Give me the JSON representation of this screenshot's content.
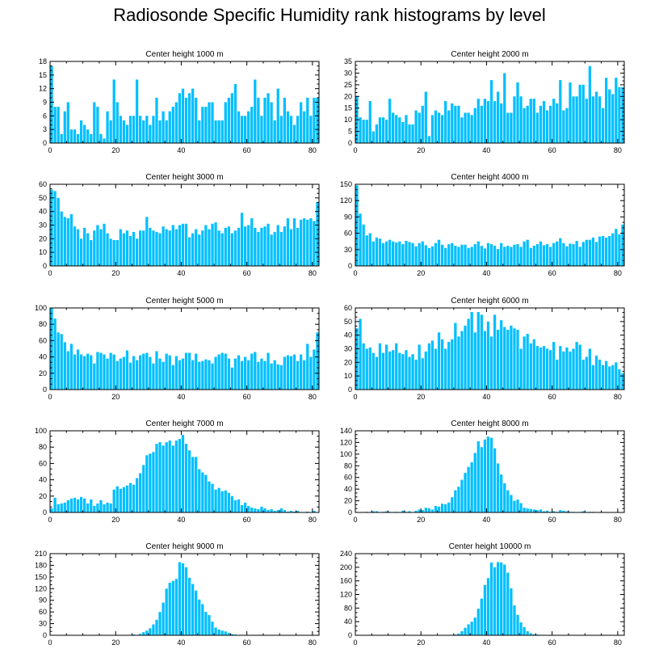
{
  "title": "Radiosonde Specific Humidity rank histograms by level",
  "colors": {
    "bar": "#00BFFF",
    "axis": "#000000"
  },
  "chart_data": [
    {
      "type": "bar",
      "title": "Center height 1000 m",
      "xlim": [
        0,
        82
      ],
      "ylim": [
        0,
        18
      ],
      "xticks": [
        0,
        20,
        40,
        60,
        80
      ],
      "yticks": [
        0,
        3,
        6,
        9,
        12,
        15,
        18
      ],
      "values": [
        17,
        8,
        8,
        2,
        7,
        9,
        3,
        3,
        2,
        5,
        4,
        3,
        2,
        9,
        8,
        2,
        1,
        7,
        5,
        14,
        9,
        6,
        5,
        4,
        6,
        6,
        14,
        6,
        5,
        6,
        4,
        6,
        10,
        5,
        7,
        5,
        7,
        8,
        9,
        11,
        12,
        10,
        11,
        12,
        10,
        5,
        8,
        8,
        9,
        9,
        5,
        5,
        5,
        9,
        10,
        11,
        13,
        7,
        6,
        6,
        7,
        8,
        14,
        10,
        6,
        10,
        11,
        9,
        5,
        12,
        6,
        10,
        7,
        6,
        4,
        6,
        9,
        7,
        10,
        6,
        10,
        10
      ]
    },
    {
      "type": "bar",
      "title": "Center height 2000 m",
      "xlim": [
        0,
        82
      ],
      "ylim": [
        0,
        35
      ],
      "xticks": [
        0,
        20,
        40,
        60,
        80
      ],
      "yticks": [
        0,
        5,
        10,
        15,
        20,
        25,
        30,
        35
      ],
      "values": [
        20,
        11,
        10,
        10,
        18,
        5,
        8,
        11,
        11,
        10,
        19,
        13,
        12,
        11,
        9,
        12,
        8,
        8,
        14,
        13,
        16,
        22,
        3,
        12,
        14,
        13,
        12,
        18,
        14,
        17,
        16,
        16,
        11,
        13,
        13,
        12,
        15,
        19,
        16,
        19,
        18,
        27,
        18,
        22,
        17,
        30,
        13,
        13,
        20,
        26,
        20,
        15,
        16,
        19,
        19,
        13,
        16,
        18,
        14,
        16,
        19,
        17,
        27,
        14,
        15,
        26,
        20,
        20,
        25,
        25,
        19,
        33,
        20,
        22,
        20,
        15,
        28,
        23,
        21,
        28,
        24,
        24
      ]
    },
    {
      "type": "bar",
      "title": "Center height 3000 m",
      "xlim": [
        0,
        82
      ],
      "ylim": [
        0,
        60
      ],
      "xticks": [
        0,
        20,
        40,
        60,
        80
      ],
      "yticks": [
        0,
        10,
        20,
        30,
        40,
        50,
        60
      ],
      "values": [
        56,
        55,
        50,
        40,
        36,
        35,
        38,
        29,
        27,
        20,
        28,
        24,
        19,
        26,
        30,
        27,
        31,
        24,
        20,
        19,
        19,
        27,
        24,
        26,
        22,
        25,
        20,
        26,
        26,
        36,
        28,
        26,
        25,
        24,
        29,
        27,
        26,
        30,
        27,
        30,
        31,
        31,
        21,
        24,
        27,
        23,
        26,
        30,
        27,
        31,
        32,
        26,
        24,
        28,
        29,
        24,
        26,
        28,
        39,
        29,
        30,
        35,
        28,
        25,
        28,
        29,
        31,
        23,
        25,
        30,
        25,
        29,
        35,
        27,
        35,
        28,
        34,
        35,
        34,
        35,
        33,
        47
      ]
    },
    {
      "type": "bar",
      "title": "Center height 4000 m",
      "xlim": [
        0,
        82
      ],
      "ylim": [
        0,
        150
      ],
      "xticks": [
        0,
        20,
        40,
        60,
        80
      ],
      "yticks": [
        0,
        30,
        60,
        90,
        120,
        150
      ],
      "values": [
        148,
        96,
        76,
        56,
        60,
        45,
        52,
        50,
        42,
        45,
        48,
        45,
        43,
        45,
        40,
        46,
        44,
        42,
        36,
        42,
        45,
        38,
        33,
        36,
        42,
        48,
        39,
        33,
        40,
        42,
        37,
        35,
        39,
        39,
        33,
        35,
        40,
        45,
        37,
        32,
        42,
        40,
        37,
        31,
        42,
        35,
        37,
        35,
        39,
        40,
        35,
        45,
        48,
        33,
        37,
        40,
        45,
        38,
        40,
        35,
        42,
        45,
        51,
        42,
        36,
        41,
        40,
        46,
        35,
        44,
        48,
        48,
        52,
        44,
        54,
        55,
        52,
        55,
        60,
        68,
        58,
        76
      ]
    },
    {
      "type": "bar",
      "title": "Center height 5000 m",
      "xlim": [
        0,
        82
      ],
      "ylim": [
        0,
        100
      ],
      "xticks": [
        0,
        20,
        40,
        60,
        80
      ],
      "yticks": [
        0,
        20,
        40,
        60,
        80,
        100
      ],
      "values": [
        100,
        87,
        70,
        68,
        58,
        47,
        56,
        43,
        49,
        43,
        41,
        44,
        42,
        32,
        46,
        45,
        43,
        38,
        45,
        43,
        35,
        38,
        40,
        48,
        33,
        41,
        36,
        42,
        44,
        45,
        40,
        32,
        47,
        38,
        34,
        44,
        42,
        30,
        41,
        36,
        38,
        45,
        45,
        36,
        44,
        34,
        35,
        37,
        36,
        32,
        40,
        43,
        45,
        44,
        38,
        27,
        38,
        42,
        35,
        40,
        36,
        44,
        46,
        34,
        38,
        35,
        45,
        32,
        36,
        31,
        30,
        40,
        42,
        41,
        43,
        35,
        43,
        36,
        56,
        40,
        49,
        70
      ]
    },
    {
      "type": "bar",
      "title": "Center height 6000 m",
      "xlim": [
        0,
        82
      ],
      "ylim": [
        0,
        60
      ],
      "xticks": [
        0,
        20,
        40,
        60,
        80
      ],
      "yticks": [
        0,
        10,
        20,
        30,
        40,
        50,
        60
      ],
      "values": [
        45,
        52,
        34,
        30,
        31,
        27,
        24,
        34,
        27,
        33,
        28,
        29,
        34,
        27,
        26,
        29,
        24,
        26,
        22,
        33,
        23,
        28,
        34,
        36,
        30,
        42,
        37,
        30,
        35,
        37,
        49,
        39,
        43,
        47,
        52,
        57,
        42,
        57,
        55,
        43,
        50,
        39,
        55,
        44,
        51,
        46,
        44,
        47,
        45,
        44,
        30,
        39,
        41,
        34,
        37,
        32,
        31,
        32,
        30,
        29,
        35,
        22,
        32,
        28,
        31,
        28,
        30,
        35,
        33,
        22,
        24,
        30,
        18,
        25,
        22,
        18,
        21,
        17,
        18,
        20,
        15,
        12
      ]
    },
    {
      "type": "bar",
      "title": "Center height 7000 m",
      "xlim": [
        0,
        82
      ],
      "ylim": [
        0,
        100
      ],
      "xticks": [
        0,
        20,
        40,
        60,
        80
      ],
      "yticks": [
        0,
        20,
        40,
        60,
        80,
        100
      ],
      "values": [
        5,
        18,
        10,
        11,
        12,
        15,
        17,
        18,
        16,
        19,
        17,
        11,
        16,
        8,
        11,
        15,
        10,
        12,
        11,
        28,
        32,
        29,
        31,
        33,
        36,
        34,
        42,
        48,
        58,
        70,
        72,
        74,
        84,
        86,
        82,
        86,
        88,
        82,
        88,
        90,
        95,
        84,
        76,
        68,
        68,
        53,
        49,
        46,
        38,
        35,
        28,
        30,
        26,
        27,
        24,
        20,
        15,
        16,
        9,
        12,
        8,
        6,
        5,
        4,
        7,
        5,
        3,
        4,
        2,
        3,
        5,
        3,
        1,
        2,
        1,
        2,
        0,
        0,
        1,
        0,
        2,
        0
      ]
    },
    {
      "type": "bar",
      "title": "Center height 8000 m",
      "xlim": [
        0,
        82
      ],
      "ylim": [
        0,
        140
      ],
      "xticks": [
        0,
        20,
        40,
        60,
        80
      ],
      "yticks": [
        0,
        20,
        40,
        60,
        80,
        100,
        120,
        140
      ],
      "values": [
        0,
        0,
        0,
        1,
        0,
        2,
        2,
        0,
        1,
        2,
        1,
        0,
        1,
        0,
        3,
        1,
        2,
        0,
        3,
        5,
        4,
        8,
        7,
        5,
        11,
        10,
        15,
        14,
        17,
        26,
        38,
        44,
        56,
        68,
        78,
        86,
        102,
        122,
        112,
        125,
        130,
        128,
        110,
        84,
        65,
        50,
        38,
        30,
        20,
        22,
        16,
        8,
        7,
        6,
        5,
        4,
        5,
        2,
        3,
        1,
        2,
        1,
        4,
        3,
        2,
        1,
        1,
        0,
        0,
        2,
        0,
        1,
        1,
        0,
        0,
        0,
        0,
        0,
        0,
        0,
        0,
        0
      ]
    },
    {
      "type": "bar",
      "title": "Center height 9000 m",
      "xlim": [
        0,
        82
      ],
      "ylim": [
        0,
        210
      ],
      "xticks": [
        0,
        20,
        40,
        60,
        80
      ],
      "yticks": [
        0,
        30,
        60,
        90,
        120,
        150,
        180,
        210
      ],
      "values": [
        0,
        0,
        0,
        0,
        0,
        0,
        0,
        0,
        0,
        0,
        0,
        0,
        0,
        0,
        0,
        0,
        0,
        0,
        0,
        0,
        0,
        0,
        0,
        0,
        1,
        2,
        1,
        4,
        8,
        12,
        18,
        28,
        40,
        60,
        84,
        120,
        135,
        140,
        145,
        188,
        185,
        175,
        148,
        132,
        115,
        92,
        80,
        60,
        52,
        35,
        20,
        15,
        12,
        10,
        6,
        3,
        2,
        1,
        1,
        1,
        0,
        0,
        0,
        0,
        0,
        0,
        0,
        0,
        0,
        0,
        0,
        0,
        0,
        0,
        0,
        0,
        0,
        0,
        0,
        0,
        0,
        0
      ]
    },
    {
      "type": "bar",
      "title": "Center height 10000 m",
      "xlim": [
        0,
        82
      ],
      "ylim": [
        0,
        240
      ],
      "xticks": [
        0,
        20,
        40,
        60,
        80
      ],
      "yticks": [
        0,
        40,
        80,
        120,
        160,
        200,
        240
      ],
      "values": [
        0,
        0,
        0,
        0,
        0,
        0,
        0,
        0,
        0,
        0,
        0,
        0,
        0,
        0,
        0,
        0,
        0,
        0,
        0,
        0,
        0,
        0,
        0,
        0,
        0,
        0,
        0,
        0,
        0,
        0,
        2,
        5,
        12,
        22,
        32,
        40,
        52,
        78,
        108,
        148,
        168,
        214,
        200,
        215,
        214,
        208,
        184,
        138,
        88,
        60,
        38,
        24,
        12,
        6,
        3,
        2,
        1,
        1,
        0,
        0,
        0,
        0,
        0,
        0,
        0,
        0,
        0,
        0,
        0,
        0,
        0,
        0,
        0,
        0,
        0,
        0,
        0,
        0,
        0,
        0,
        0,
        0
      ]
    }
  ]
}
